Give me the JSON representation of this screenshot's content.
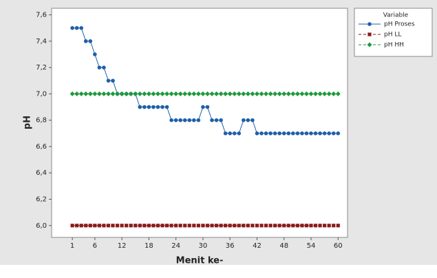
{
  "chart_data": {
    "type": "line",
    "xlabel": "Menit ke-",
    "ylabel": "pH",
    "legend_title": "Variable",
    "legend": "right",
    "x": [
      1,
      2,
      3,
      4,
      5,
      6,
      7,
      8,
      9,
      10,
      11,
      12,
      13,
      14,
      15,
      16,
      17,
      18,
      19,
      20,
      21,
      22,
      23,
      24,
      25,
      26,
      27,
      28,
      29,
      30,
      31,
      32,
      33,
      34,
      35,
      36,
      37,
      38,
      39,
      40,
      41,
      42,
      43,
      44,
      45,
      46,
      47,
      48,
      49,
      50,
      51,
      52,
      53,
      54,
      55,
      56,
      57,
      58,
      59,
      60
    ],
    "series": [
      {
        "name": "pH Proses",
        "color": "#1f5fa8",
        "marker": "circle",
        "dash": false,
        "values": [
          7.5,
          7.5,
          7.5,
          7.4,
          7.4,
          7.3,
          7.2,
          7.2,
          7.1,
          7.1,
          7.0,
          7.0,
          7.0,
          7.0,
          7.0,
          6.9,
          6.9,
          6.9,
          6.9,
          6.9,
          6.9,
          6.9,
          6.8,
          6.8,
          6.8,
          6.8,
          6.8,
          6.8,
          6.8,
          6.9,
          6.9,
          6.8,
          6.8,
          6.8,
          6.7,
          6.7,
          6.7,
          6.7,
          6.8,
          6.8,
          6.8,
          6.7,
          6.7,
          6.7,
          6.7,
          6.7,
          6.7,
          6.7,
          6.7,
          6.7,
          6.7,
          6.7,
          6.7,
          6.7,
          6.7,
          6.7,
          6.7,
          6.7,
          6.7,
          6.7
        ]
      },
      {
        "name": "pH LL",
        "color": "#8b1a1a",
        "marker": "square",
        "dash": true,
        "values": [
          6,
          6,
          6,
          6,
          6,
          6,
          6,
          6,
          6,
          6,
          6,
          6,
          6,
          6,
          6,
          6,
          6,
          6,
          6,
          6,
          6,
          6,
          6,
          6,
          6,
          6,
          6,
          6,
          6,
          6,
          6,
          6,
          6,
          6,
          6,
          6,
          6,
          6,
          6,
          6,
          6,
          6,
          6,
          6,
          6,
          6,
          6,
          6,
          6,
          6,
          6,
          6,
          6,
          6,
          6,
          6,
          6,
          6,
          6,
          6
        ]
      },
      {
        "name": "pH HH",
        "color": "#1e9a3c",
        "marker": "diamond",
        "dash": true,
        "values": [
          7,
          7,
          7,
          7,
          7,
          7,
          7,
          7,
          7,
          7,
          7,
          7,
          7,
          7,
          7,
          7,
          7,
          7,
          7,
          7,
          7,
          7,
          7,
          7,
          7,
          7,
          7,
          7,
          7,
          7,
          7,
          7,
          7,
          7,
          7,
          7,
          7,
          7,
          7,
          7,
          7,
          7,
          7,
          7,
          7,
          7,
          7,
          7,
          7,
          7,
          7,
          7,
          7,
          7,
          7,
          7,
          7,
          7,
          7,
          7
        ]
      }
    ],
    "xlim": [
      -3.6,
      62.1
    ],
    "xticks": [
      1,
      6,
      12,
      18,
      24,
      30,
      36,
      42,
      48,
      54,
      60
    ],
    "ylim": [
      5.91,
      7.65
    ],
    "yticks": [
      {
        "value": 6.0,
        "label": "6,0"
      },
      {
        "value": 6.2,
        "label": "6,2"
      },
      {
        "value": 6.4,
        "label": "6,4"
      },
      {
        "value": 6.6,
        "label": "6,6"
      },
      {
        "value": 6.8,
        "label": "6,8"
      },
      {
        "value": 7.0,
        "label": "7,0"
      },
      {
        "value": 7.2,
        "label": "7,2"
      },
      {
        "value": 7.4,
        "label": "7,4"
      },
      {
        "value": 7.6,
        "label": "7,6"
      }
    ]
  }
}
